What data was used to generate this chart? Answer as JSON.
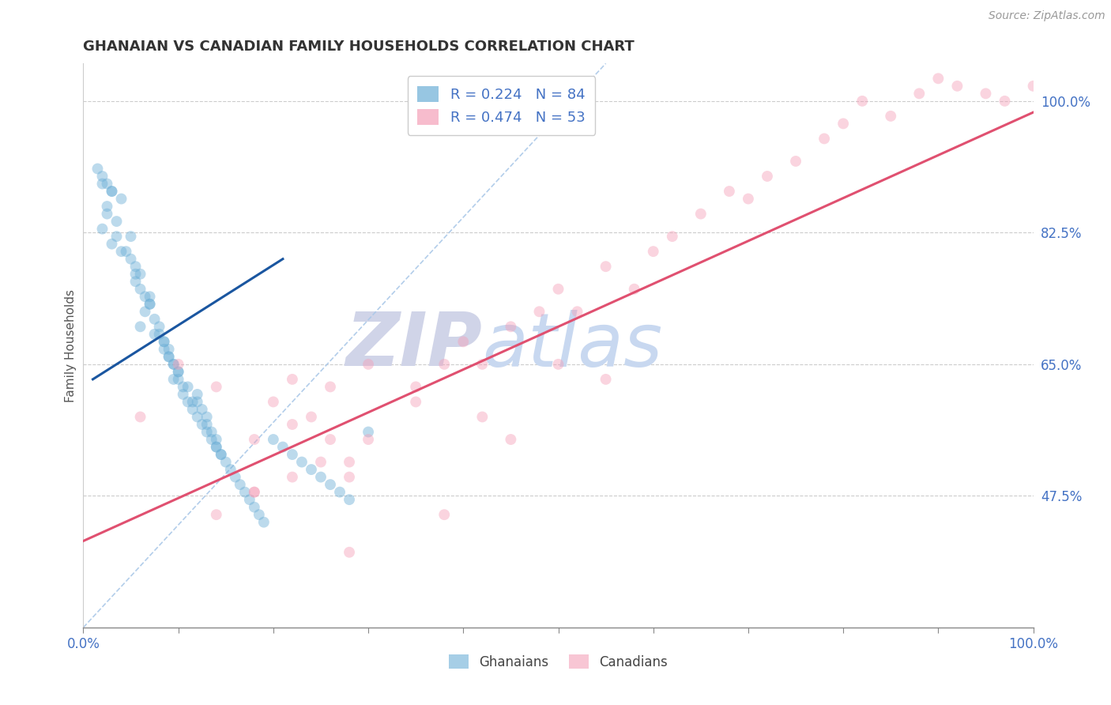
{
  "title": "GHANAIAN VS CANADIAN FAMILY HOUSEHOLDS CORRELATION CHART",
  "source_text": "Source: ZipAtlas.com",
  "ylabel": "Family Households",
  "xlim": [
    0,
    1
  ],
  "ylim": [
    0.3,
    1.05
  ],
  "yticks_right": [
    0.475,
    0.65,
    0.825,
    1.0
  ],
  "ytick_labels_right": [
    "47.5%",
    "65.0%",
    "82.5%",
    "100.0%"
  ],
  "legend_label_ghanaians": "Ghanaians",
  "legend_label_canadians": "Canadians",
  "legend_R_blue": "R = 0.224   N = 84",
  "legend_R_pink": "R = 0.474   N = 53",
  "blue_color": "#6baed6",
  "pink_color": "#f4a0b8",
  "blue_line_color": "#1a56a0",
  "pink_line_color": "#e05070",
  "ref_line_color": "#aac8e8",
  "title_color": "#333333",
  "axis_label_color": "#4472c4",
  "grid_color": "#cccccc",
  "background_color": "#ffffff",
  "watermark_zip_color": "#d0d4e8",
  "watermark_atlas_color": "#c8d8f0",
  "ghanaian_x": [
    0.02,
    0.025,
    0.03,
    0.035,
    0.04,
    0.02,
    0.03,
    0.04,
    0.025,
    0.035,
    0.05,
    0.055,
    0.06,
    0.05,
    0.055,
    0.045,
    0.06,
    0.065,
    0.07,
    0.055,
    0.065,
    0.075,
    0.07,
    0.06,
    0.08,
    0.085,
    0.09,
    0.07,
    0.075,
    0.08,
    0.085,
    0.09,
    0.095,
    0.1,
    0.085,
    0.095,
    0.105,
    0.09,
    0.1,
    0.095,
    0.105,
    0.11,
    0.1,
    0.115,
    0.12,
    0.11,
    0.115,
    0.12,
    0.125,
    0.13,
    0.12,
    0.125,
    0.13,
    0.135,
    0.14,
    0.13,
    0.135,
    0.14,
    0.145,
    0.15,
    0.14,
    0.145,
    0.155,
    0.16,
    0.165,
    0.17,
    0.175,
    0.18,
    0.185,
    0.19,
    0.2,
    0.21,
    0.22,
    0.23,
    0.24,
    0.25,
    0.26,
    0.27,
    0.28,
    0.3,
    0.015,
    0.02,
    0.025,
    0.03
  ],
  "ghanaian_y": [
    0.89,
    0.85,
    0.88,
    0.84,
    0.87,
    0.83,
    0.81,
    0.8,
    0.86,
    0.82,
    0.79,
    0.78,
    0.77,
    0.82,
    0.76,
    0.8,
    0.75,
    0.74,
    0.73,
    0.77,
    0.72,
    0.71,
    0.74,
    0.7,
    0.69,
    0.68,
    0.67,
    0.73,
    0.69,
    0.7,
    0.68,
    0.66,
    0.65,
    0.64,
    0.67,
    0.63,
    0.62,
    0.66,
    0.64,
    0.65,
    0.61,
    0.6,
    0.63,
    0.59,
    0.58,
    0.62,
    0.6,
    0.61,
    0.57,
    0.56,
    0.6,
    0.59,
    0.58,
    0.55,
    0.54,
    0.57,
    0.56,
    0.55,
    0.53,
    0.52,
    0.54,
    0.53,
    0.51,
    0.5,
    0.49,
    0.48,
    0.47,
    0.46,
    0.45,
    0.44,
    0.55,
    0.54,
    0.53,
    0.52,
    0.51,
    0.5,
    0.49,
    0.48,
    0.47,
    0.56,
    0.91,
    0.9,
    0.89,
    0.88
  ],
  "canadian_x": [
    0.06,
    0.1,
    0.14,
    0.18,
    0.2,
    0.22,
    0.24,
    0.26,
    0.28,
    0.3,
    0.18,
    0.22,
    0.25,
    0.28,
    0.22,
    0.26,
    0.14,
    0.18,
    0.35,
    0.38,
    0.4,
    0.42,
    0.45,
    0.48,
    0.5,
    0.52,
    0.55,
    0.58,
    0.6,
    0.62,
    0.65,
    0.68,
    0.7,
    0.72,
    0.75,
    0.78,
    0.8,
    0.82,
    0.85,
    0.88,
    0.9,
    0.92,
    0.95,
    0.97,
    1.0,
    0.35,
    0.45,
    0.55,
    0.3,
    0.42,
    0.5,
    0.38,
    0.28
  ],
  "canadian_y": [
    0.58,
    0.65,
    0.62,
    0.55,
    0.6,
    0.63,
    0.58,
    0.55,
    0.52,
    0.65,
    0.48,
    0.5,
    0.52,
    0.5,
    0.57,
    0.62,
    0.45,
    0.48,
    0.62,
    0.65,
    0.68,
    0.65,
    0.7,
    0.72,
    0.75,
    0.72,
    0.78,
    0.75,
    0.8,
    0.82,
    0.85,
    0.88,
    0.87,
    0.9,
    0.92,
    0.95,
    0.97,
    1.0,
    0.98,
    1.01,
    1.03,
    1.02,
    1.01,
    1.0,
    1.02,
    0.6,
    0.55,
    0.63,
    0.55,
    0.58,
    0.65,
    0.45,
    0.4
  ],
  "blue_trend_x": [
    0.01,
    0.21
  ],
  "blue_trend_y": [
    0.63,
    0.79
  ],
  "pink_trend_x": [
    0.0,
    1.0
  ],
  "pink_trend_y": [
    0.415,
    0.985
  ],
  "ref_line_x": [
    0.0,
    0.55
  ],
  "ref_line_y": [
    0.3,
    1.05
  ]
}
